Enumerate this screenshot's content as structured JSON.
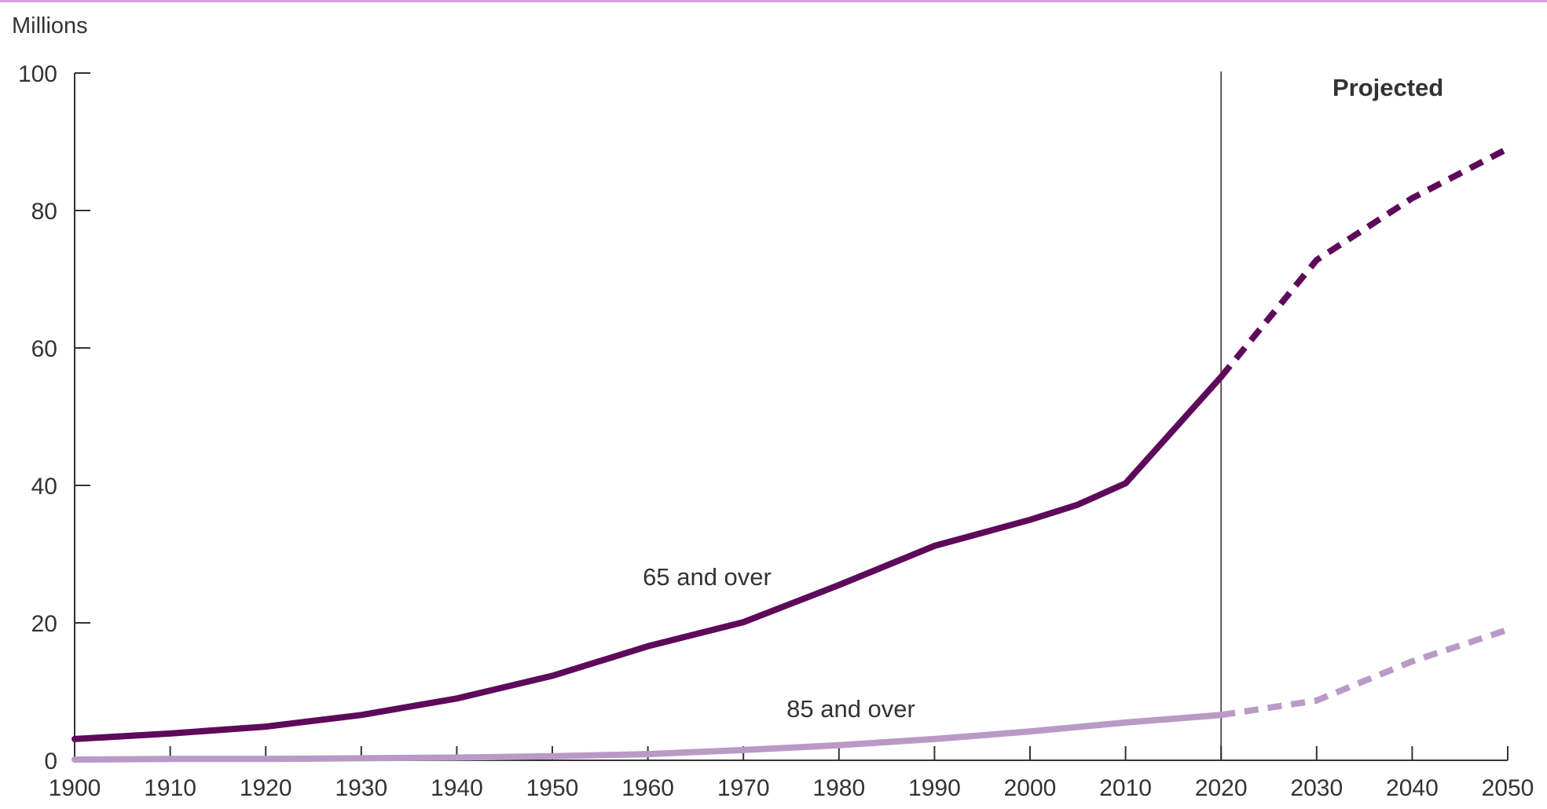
{
  "chart_data": {
    "type": "line",
    "ylabel": "Millions",
    "ylim": [
      0,
      100
    ],
    "yticks": [
      0,
      20,
      40,
      60,
      80,
      100
    ],
    "xlim": [
      1900,
      2050
    ],
    "xticks": [
      1900,
      1910,
      1920,
      1930,
      1940,
      1950,
      1960,
      1970,
      1980,
      1990,
      2000,
      2010,
      2020,
      2030,
      2040,
      2050
    ],
    "projection_start": 2020,
    "projection_label": "Projected",
    "grid": false,
    "colors": {
      "series_65": "#5e0a5a",
      "series_85": "#b99ac6",
      "top_rule": "#d9a0d9",
      "axis": "#333333",
      "divider": "#555555"
    },
    "series": [
      {
        "name": "65 and over",
        "observed": [
          [
            1900,
            3.1
          ],
          [
            1910,
            3.9
          ],
          [
            1920,
            4.9
          ],
          [
            1930,
            6.6
          ],
          [
            1940,
            9.0
          ],
          [
            1950,
            12.3
          ],
          [
            1960,
            16.6
          ],
          [
            1970,
            20.1
          ],
          [
            1980,
            25.5
          ],
          [
            1990,
            31.2
          ],
          [
            2000,
            35.0
          ],
          [
            2005,
            37.2
          ],
          [
            2010,
            40.3
          ],
          [
            2020,
            55.8
          ]
        ],
        "projected": [
          [
            2020,
            55.8
          ],
          [
            2030,
            72.8
          ],
          [
            2040,
            81.8
          ],
          [
            2050,
            89.0
          ]
        ]
      },
      {
        "name": "85 and over",
        "observed": [
          [
            1900,
            0.1
          ],
          [
            1910,
            0.2
          ],
          [
            1920,
            0.2
          ],
          [
            1930,
            0.3
          ],
          [
            1940,
            0.4
          ],
          [
            1950,
            0.6
          ],
          [
            1960,
            0.9
          ],
          [
            1970,
            1.5
          ],
          [
            1980,
            2.2
          ],
          [
            1990,
            3.1
          ],
          [
            2000,
            4.2
          ],
          [
            2010,
            5.5
          ],
          [
            2020,
            6.6
          ]
        ],
        "projected": [
          [
            2020,
            6.6
          ],
          [
            2030,
            8.7
          ],
          [
            2040,
            14.4
          ],
          [
            2050,
            19.0
          ]
        ]
      }
    ]
  }
}
